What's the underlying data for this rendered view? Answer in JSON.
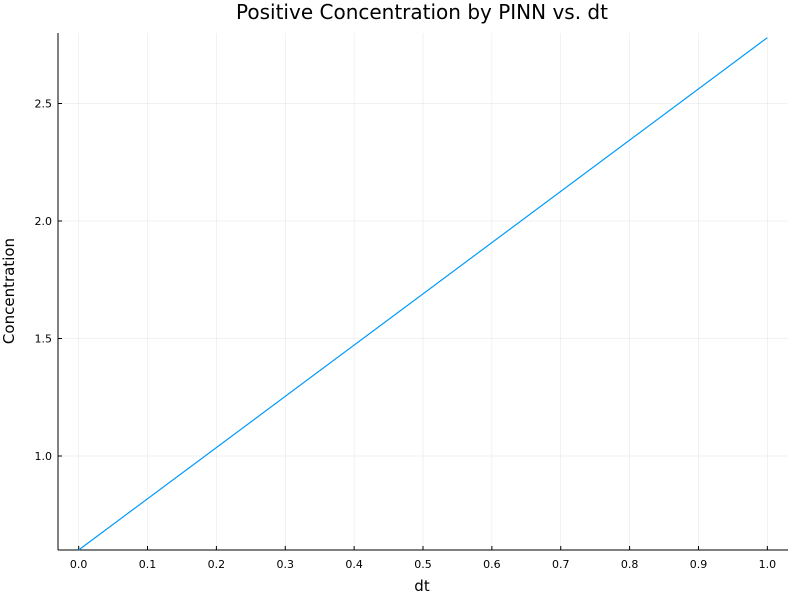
{
  "chart_data": {
    "type": "line",
    "title": "Positive Concentration by PINN vs. dt",
    "xlabel": "dt",
    "ylabel": "Concentration",
    "xlim": [
      -0.03,
      1.03
    ],
    "ylim": [
      0.6,
      2.8
    ],
    "xticks": [
      "0.0",
      "0.1",
      "0.2",
      "0.3",
      "0.4",
      "0.5",
      "0.6",
      "0.7",
      "0.8",
      "0.9",
      "1.0"
    ],
    "yticks": [
      "1.0",
      "1.5",
      "2.0",
      "2.5"
    ],
    "grid": true,
    "legend": "none",
    "series": [
      {
        "color": "#009AFA",
        "x": [
          0.0,
          1.0
        ],
        "y": [
          0.6,
          2.78
        ]
      }
    ]
  }
}
